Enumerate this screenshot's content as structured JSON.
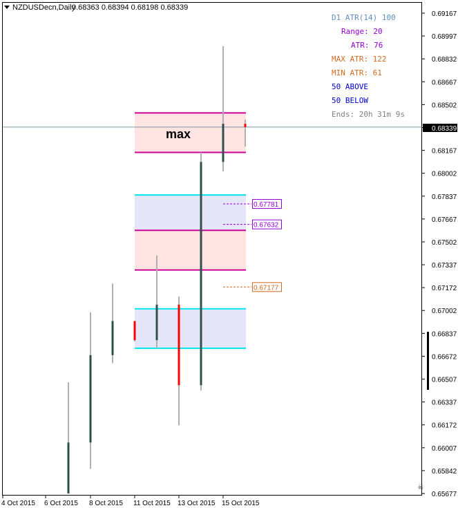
{
  "header": {
    "symbol": "NZDUSDecn,Daily",
    "ohlc": "0.68363 0.68394 0.68198 0.68339"
  },
  "info_panel": [
    {
      "text": "D1 ATR(14) 100",
      "color": "#5f8fbf"
    },
    {
      "text": "Range: 20",
      "color": "#9400d3"
    },
    {
      "text": "ATR: 76",
      "color": "#9400d3"
    },
    {
      "text": "MAX ATR: 122",
      "color": "#d2691e"
    },
    {
      "text": "MIN ATR: 61",
      "color": "#d2691e"
    },
    {
      "text": "50 ABOVE",
      "color": "#0000cd"
    },
    {
      "text": "50 BELOW",
      "color": "#0000cd"
    },
    {
      "text": "Ends: 20h 31m 9s",
      "color": "#808080"
    }
  ],
  "max_label": "max",
  "current_price": "0.68339",
  "colors": {
    "bull": "#2f4f4f",
    "bear": "#ff0000",
    "wick": "#b0b0b0",
    "zone_pink": "#ffe4e1",
    "zone_blue": "#e6e6fa",
    "line_magenta": "#cc0099",
    "line_cyan": "#00e5ee",
    "level_purple": "#9400d3",
    "level_orange": "#d2691e",
    "price_line": "#7a96a8",
    "max_label": "#1fa3e0"
  },
  "chart_data": {
    "type": "candlestick",
    "x_tick_labels": [
      "4 Oct 2015",
      "6 Oct 2015",
      "8 Oct 2015",
      "11 Oct 2015",
      "13 Oct 2015",
      "15 Oct 2015"
    ],
    "y_tick_labels": [
      "0.69167",
      "0.68997",
      "0.68832",
      "0.68667",
      "0.68502",
      "0.68332",
      "0.68167",
      "0.68002",
      "0.67837",
      "0.67667",
      "0.67502",
      "0.67337",
      "0.67172",
      "0.67002",
      "0.66837",
      "0.66672",
      "0.66507",
      "0.66337",
      "0.66172",
      "0.66007",
      "0.65842",
      "0.65677"
    ],
    "ylim": [
      0.65677,
      0.69167
    ],
    "candles": [
      {
        "date": "5 Oct 2015",
        "open": 0.65677,
        "high": 0.66484,
        "low": 0.65677,
        "close": 0.66047
      },
      {
        "date": "6 Oct 2015",
        "open": 0.66047,
        "high": 0.66994,
        "low": 0.65855,
        "close": 0.66682
      },
      {
        "date": "7 Oct 2015",
        "open": 0.66682,
        "high": 0.67202,
        "low": 0.66623,
        "close": 0.6693
      },
      {
        "date": "8 Oct 2015",
        "open": 0.6693,
        "high": 0.6693,
        "low": 0.66781,
        "close": 0.66791
      },
      {
        "date": "9 Oct 2015",
        "open": 0.66791,
        "high": 0.67406,
        "low": 0.66732,
        "close": 0.67049
      },
      {
        "date": "12 Oct 2015",
        "open": 0.67049,
        "high": 0.67108,
        "low": 0.66172,
        "close": 0.66464
      },
      {
        "date": "13 Oct 2015",
        "open": 0.66464,
        "high": 0.68155,
        "low": 0.66425,
        "close": 0.68086
      },
      {
        "date": "14 Oct 2015",
        "open": 0.68086,
        "high": 0.68928,
        "low": 0.68017,
        "close": 0.68363
      },
      {
        "date": "15 Oct 2015",
        "open": 0.68363,
        "high": 0.68394,
        "low": 0.68198,
        "close": 0.68339
      }
    ],
    "zones": [
      {
        "name": "max zone",
        "top": 0.68442,
        "bottom": 0.68155,
        "fill": "pink",
        "line": "magenta"
      },
      {
        "name": "upper blue zone",
        "top": 0.67846,
        "bottom": 0.67544,
        "fill": "blue",
        "line": "cyan"
      },
      {
        "name": "middle pink zone",
        "top": 0.67589,
        "bottom": 0.67301,
        "fill": "pink",
        "line": "magenta"
      },
      {
        "name": "lower blue zone",
        "top": 0.67019,
        "bottom": 0.66732,
        "fill": "blue",
        "line": "cyan"
      }
    ],
    "levels": [
      {
        "value": 0.67781,
        "label": "0.67781",
        "color": "purple"
      },
      {
        "value": 0.67632,
        "label": "0.67632",
        "color": "purple"
      },
      {
        "value": 0.67177,
        "label": "0.67177",
        "color": "orange"
      }
    ]
  }
}
